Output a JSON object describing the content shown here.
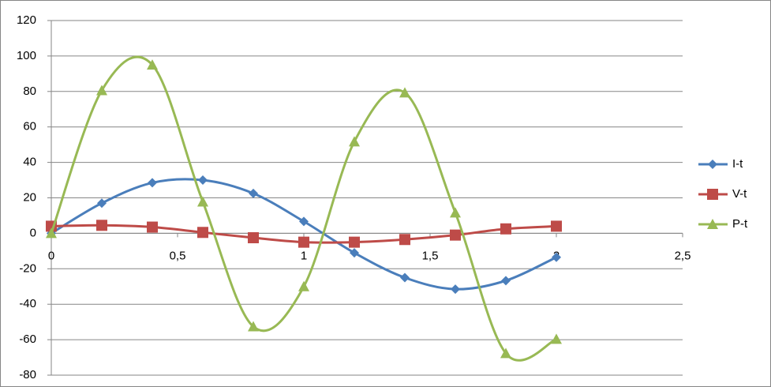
{
  "chart_data": {
    "type": "scatter-smooth",
    "x": [
      0,
      0.2,
      0.4,
      0.6,
      0.8,
      1.0,
      1.2,
      1.4,
      1.6,
      1.8,
      2.0
    ],
    "series": [
      {
        "name": "I-t",
        "color": "#4a7ebb",
        "marker": "diamond",
        "values": [
          0,
          17,
          28.5,
          30,
          22.5,
          6.7,
          -11,
          -25,
          -31.5,
          -26.7,
          -13.5
        ]
      },
      {
        "name": "V-t",
        "color": "#be4b48",
        "marker": "square",
        "values": [
          4,
          4.5,
          3.5,
          0.5,
          -2.5,
          -5,
          -5,
          -3.5,
          -1,
          2.5,
          4
        ]
      },
      {
        "name": "P-t",
        "color": "#98b954",
        "marker": "triangle",
        "values": [
          0,
          80.6,
          95,
          17.8,
          -52.6,
          -30,
          51.7,
          79.3,
          11.6,
          -67.7,
          -59.7
        ]
      }
    ],
    "xlim": [
      0,
      2.5
    ],
    "xticks": [
      0,
      {
        "value": 0.5,
        "label": "0,5"
      },
      1,
      {
        "value": 1.5,
        "label": "1,5"
      },
      2,
      {
        "value": 2.5,
        "label": "2,5"
      }
    ],
    "ylim": [
      -80,
      120
    ],
    "yticks": [
      -80,
      -60,
      -40,
      -20,
      0,
      20,
      40,
      60,
      80,
      100,
      120
    ],
    "grid": true,
    "legend": "right"
  }
}
